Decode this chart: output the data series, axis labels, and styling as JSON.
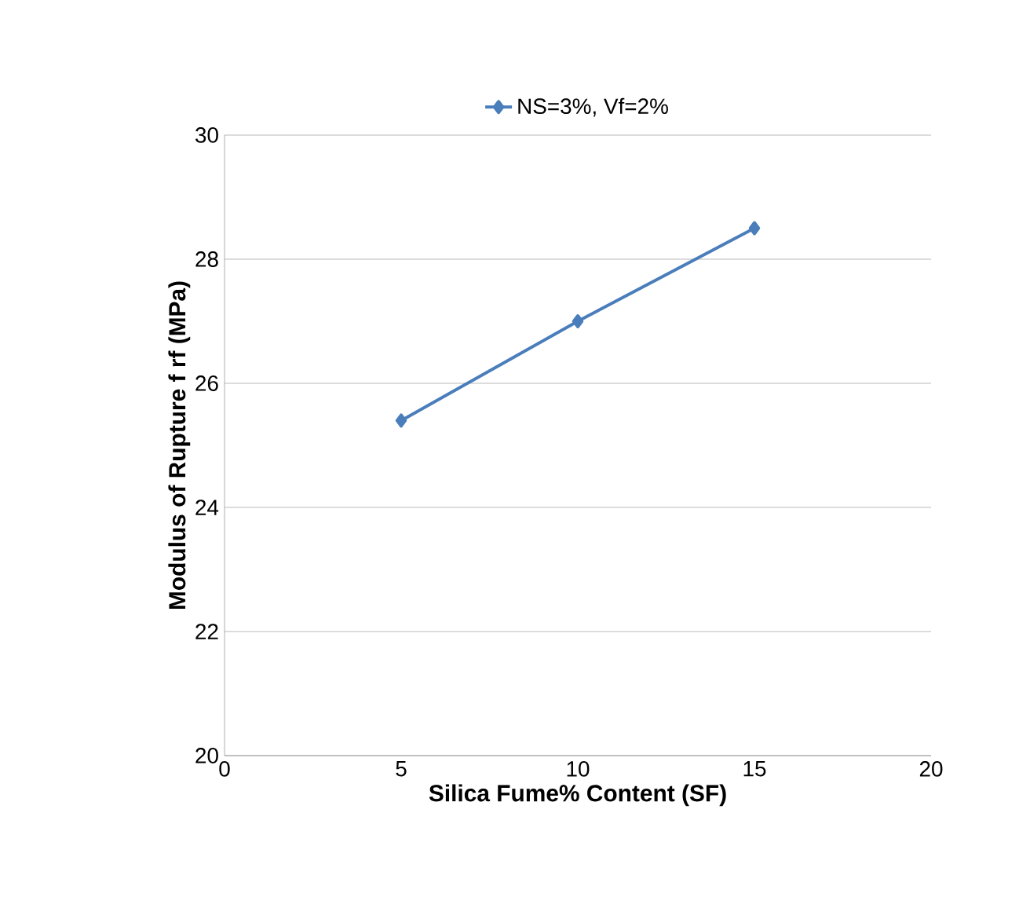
{
  "chart_data": {
    "type": "line",
    "xlabel": "Silica Fume% Content (SF)",
    "ylabel": "Modulus of Rupture f rf (MPa)",
    "x": [
      5,
      10,
      15
    ],
    "series": [
      {
        "name": "NS=3%,     Vf=2%",
        "color": "#4a7ebb",
        "values": [
          25.4,
          27.0,
          28.5
        ]
      }
    ],
    "xlim": [
      0,
      20
    ],
    "xticks": [
      0,
      5,
      10,
      15,
      20
    ],
    "ylim": [
      20,
      30
    ],
    "yticks": [
      20,
      22,
      24,
      26,
      28,
      30
    ],
    "grid": "y",
    "legend": "top",
    "marker": "diamond",
    "line_style": "solid"
  }
}
